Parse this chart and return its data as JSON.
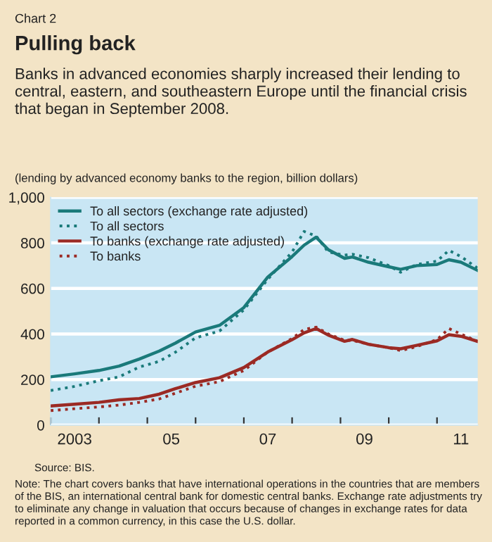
{
  "chart_data": {
    "type": "line",
    "title": "Pulling back",
    "subtitle": "Banks in advanced economies sharply increased their lending to central, eastern, and southeastern Europe until the financial crisis that began in September 2008.",
    "ylabel": "(lending by advanced economy banks to the region, billion dollars)",
    "annotations": [
      "Chart 2",
      "Source: BIS.",
      "Note: The chart covers banks that have international operations in the countries that are members of the BIS, an international central bank for domestic central banks. Exchange rate adjustments try to eliminate any change in valuation that occurs because of changes in exchange rates for data reported in a common currency, in this case the U.S. dollar."
    ],
    "x": [
      "2003-01",
      "2003-07",
      "2004-01",
      "2004-06",
      "2004-11",
      "2005-04",
      "2005-08",
      "2006-01",
      "2006-07",
      "2007-01",
      "2007-07",
      "2008-01",
      "2008-04",
      "2008-07",
      "2008-10",
      "2009-02",
      "2009-04",
      "2009-08",
      "2010-01",
      "2010-04",
      "2010-08",
      "2011-01",
      "2011-04",
      "2011-07",
      "2011-11"
    ],
    "series": [
      {
        "name": "To all sectors (exchange rate adjusted)",
        "color": "#1a7a7a",
        "line_style": "solid",
        "values": [
          212,
          225,
          240,
          259,
          290,
          325,
          360,
          409,
          438,
          516,
          650,
          740,
          790,
          825,
          770,
          732,
          738,
          715,
          695,
          684,
          700,
          705,
          726,
          715,
          680
        ]
      },
      {
        "name": "To all sectors",
        "color": "#1a7a7a",
        "line_style": "dotted",
        "values": [
          152,
          170,
          195,
          212,
          255,
          280,
          320,
          383,
          413,
          506,
          640,
          760,
          850,
          830,
          760,
          746,
          750,
          735,
          700,
          671,
          705,
          720,
          767,
          740,
          690
        ]
      },
      {
        "name": "To banks (exchange rate adjusted)",
        "color": "#9b2a24",
        "line_style": "solid",
        "values": [
          84,
          92,
          100,
          111,
          117,
          136,
          160,
          187,
          208,
          253,
          321,
          375,
          405,
          424,
          395,
          368,
          376,
          355,
          340,
          335,
          350,
          370,
          397,
          390,
          368
        ]
      },
      {
        "name": "To banks",
        "color": "#9b2a24",
        "line_style": "dotted",
        "values": [
          64,
          72,
          80,
          88,
          100,
          115,
          140,
          171,
          191,
          240,
          321,
          380,
          420,
          430,
          400,
          372,
          372,
          355,
          340,
          327,
          345,
          375,
          424,
          400,
          368
        ]
      }
    ],
    "xlim": [
      "2003-01-01",
      "2011-11-05"
    ],
    "xticks": [
      {
        "value": "2003-01",
        "label": null
      },
      {
        "value": "2003-07",
        "label": "2003"
      },
      {
        "value": "2004-01",
        "label": null
      },
      {
        "value": "2005-01",
        "label": null
      },
      {
        "value": "2005-07",
        "label": "05"
      },
      {
        "value": "2006-01",
        "label": null
      },
      {
        "value": "2007-01",
        "label": null
      },
      {
        "value": "2007-07",
        "label": "07"
      },
      {
        "value": "2008-01",
        "label": null
      },
      {
        "value": "2009-01",
        "label": null
      },
      {
        "value": "2009-07",
        "label": "09"
      },
      {
        "value": "2010-01",
        "label": null
      },
      {
        "value": "2011-01",
        "label": null
      },
      {
        "value": "2011-07",
        "label": "11"
      }
    ],
    "ylim": [
      0,
      1000
    ],
    "yticks": [
      0,
      200,
      400,
      600,
      800,
      {
        "value": 1000,
        "label": "1,000"
      }
    ],
    "grid": "y",
    "legend": "top left",
    "marker": "none"
  }
}
